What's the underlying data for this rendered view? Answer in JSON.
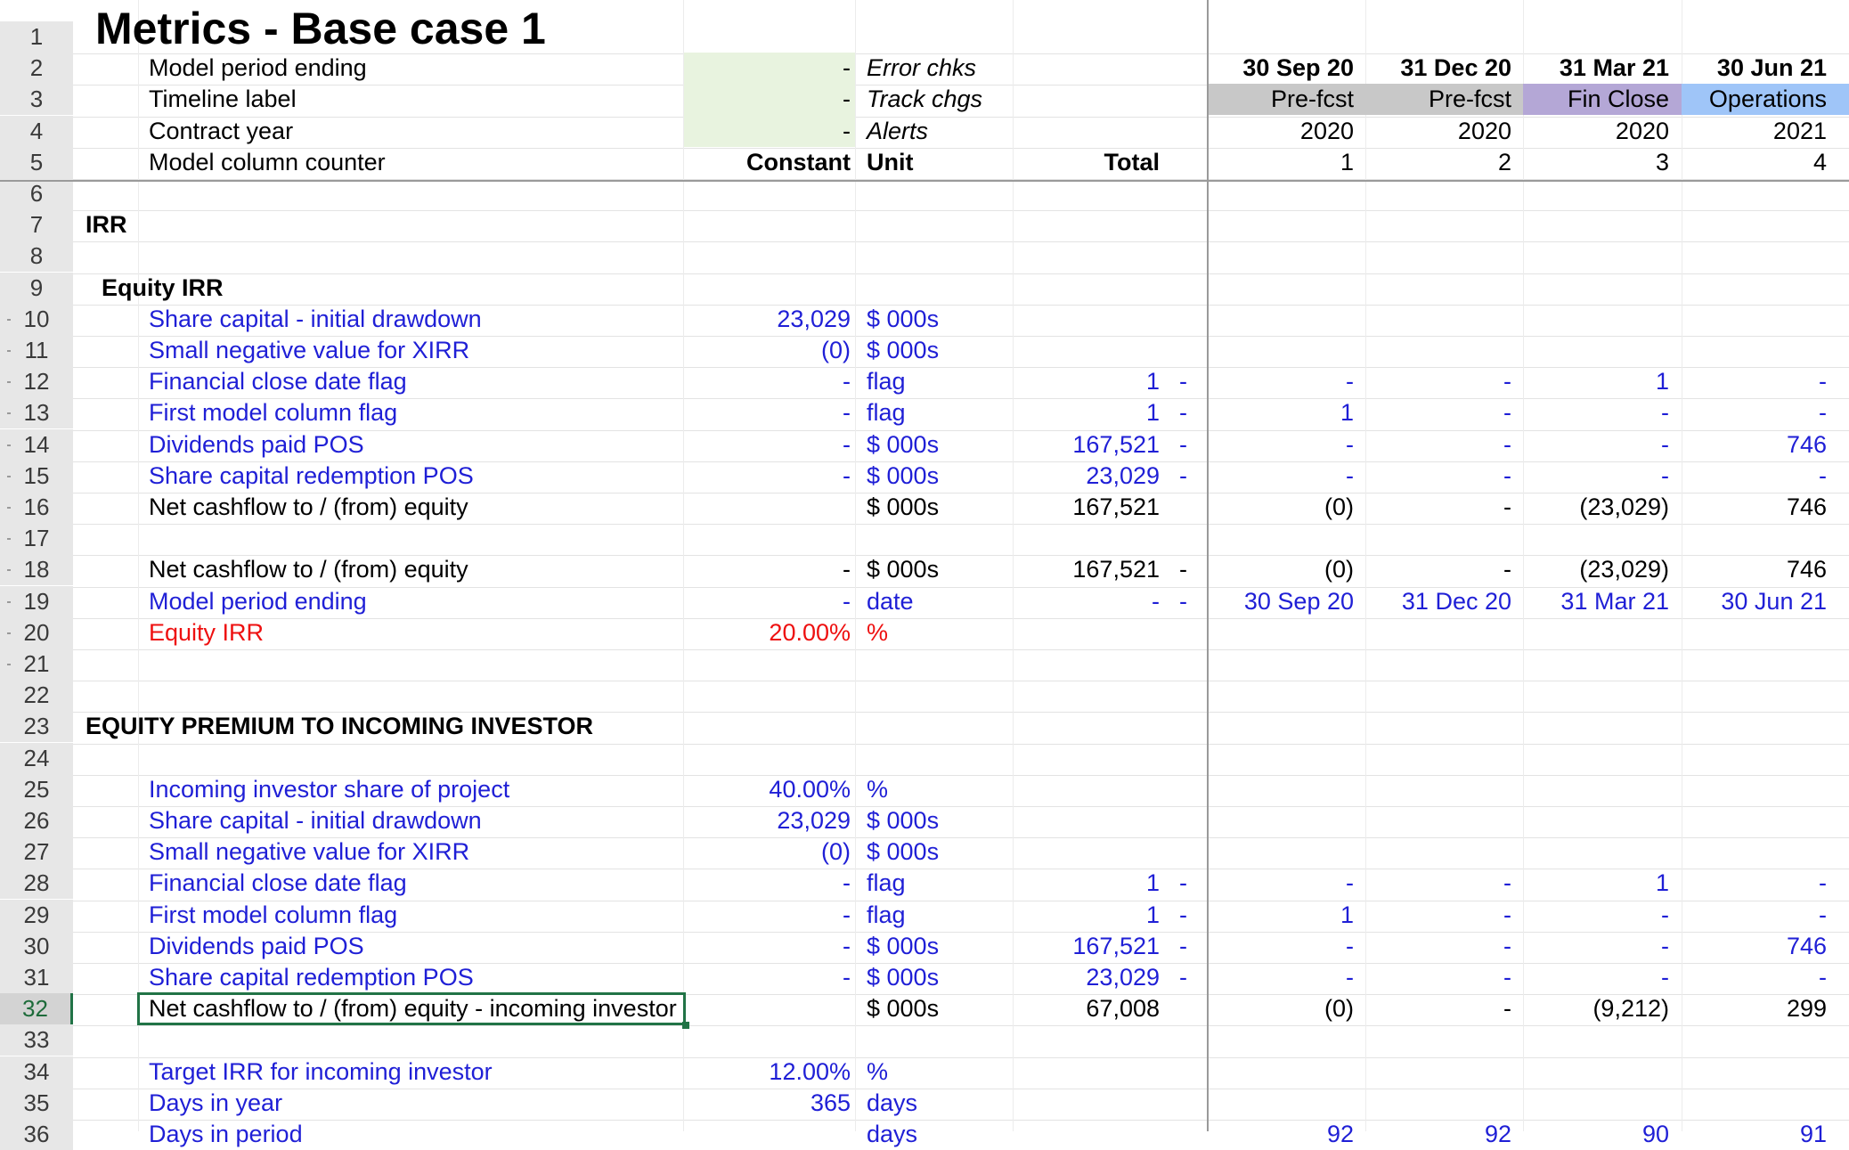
{
  "title": "Metrics - Base case 1",
  "header": {
    "labels": [
      "Model period ending",
      "Timeline label",
      "Contract year",
      "Model column counter"
    ],
    "constants": [
      "-",
      "-",
      "-"
    ],
    "checks": [
      "Error chks",
      "Track chgs",
      "Alerts"
    ],
    "constant_hdr": "Constant",
    "unit_hdr": "Unit",
    "total_hdr": "Total",
    "periods": [
      {
        "date": "30 Sep 20",
        "label": "Pre-fcst",
        "year": "2020",
        "counter": "1",
        "color": "#c8c8c8"
      },
      {
        "date": "31 Dec 20",
        "label": "Pre-fcst",
        "year": "2020",
        "counter": "2",
        "color": "#c8c8c8"
      },
      {
        "date": "31 Mar 21",
        "label": "Fin Close",
        "year": "2020",
        "counter": "3",
        "color": "#b4a7d6"
      },
      {
        "date": "30 Jun 21",
        "label": "Operations",
        "year": "2021",
        "counter": "4",
        "color": "#9fc5f8"
      }
    ],
    "constant_fill": "#e8f3df"
  },
  "row_numbers": [
    "1",
    "2",
    "3",
    "4",
    "5",
    "6",
    "7",
    "8",
    "9",
    "10",
    "11",
    "12",
    "13",
    "14",
    "15",
    "16",
    "17",
    "18",
    "19",
    "20",
    "21",
    "22",
    "23",
    "24",
    "25",
    "26",
    "27",
    "28",
    "29",
    "30",
    "31",
    "32",
    "33",
    "34",
    "35",
    "36"
  ],
  "active_row": "32",
  "sections": {
    "irr": "IRR",
    "equity_irr": "Equity IRR",
    "premium": "EQUITY PREMIUM TO INCOMING INVESTOR"
  },
  "rows": [
    {
      "n": 10,
      "label": "Share capital - initial drawdown",
      "color": "blue",
      "constant": "23,029",
      "unit": "$ 000s",
      "total": "",
      "dash": "",
      "p": [
        "",
        "",
        "",
        ""
      ]
    },
    {
      "n": 11,
      "label": "Small negative value for XIRR",
      "color": "blue",
      "constant": "(0)",
      "unit": "$ 000s",
      "total": "",
      "dash": "",
      "p": [
        "",
        "",
        "",
        ""
      ]
    },
    {
      "n": 12,
      "label": "Financial close date flag",
      "color": "blue",
      "constant": "-",
      "unit": "flag",
      "total": "1",
      "dash": "-",
      "p": [
        "-",
        "-",
        "1",
        "-"
      ]
    },
    {
      "n": 13,
      "label": "First model column flag",
      "color": "blue",
      "constant": "-",
      "unit": "flag",
      "total": "1",
      "dash": "-",
      "p": [
        "1",
        "-",
        "-",
        "-"
      ]
    },
    {
      "n": 14,
      "label": "Dividends paid POS",
      "color": "blue",
      "constant": "-",
      "unit": "$ 000s",
      "total": "167,521",
      "dash": "-",
      "p": [
        "-",
        "-",
        "-",
        "746"
      ]
    },
    {
      "n": 15,
      "label": "Share capital redemption POS",
      "color": "blue",
      "constant": "-",
      "unit": "$ 000s",
      "total": "23,029",
      "dash": "-",
      "p": [
        "-",
        "-",
        "-",
        "-"
      ]
    },
    {
      "n": 16,
      "label": "Net cashflow to / (from) equity",
      "color": "black",
      "constant": "",
      "unit": "$ 000s",
      "total": "167,521",
      "dash": "",
      "p": [
        "(0)",
        "-",
        "(23,029)",
        "746"
      ]
    },
    {
      "n": 18,
      "label": "Net cashflow to / (from) equity",
      "color": "black",
      "constant": "-",
      "unit": "$ 000s",
      "total": "167,521",
      "dash": "-",
      "p": [
        "(0)",
        "-",
        "(23,029)",
        "746"
      ]
    },
    {
      "n": 19,
      "label": "Model period ending",
      "color": "blue",
      "constant": "-",
      "unit": "date",
      "total": "-",
      "dash": "-",
      "p": [
        "30 Sep 20",
        "31 Dec 20",
        "31 Mar 21",
        "30 Jun 21"
      ]
    },
    {
      "n": 20,
      "label": "Equity IRR",
      "color": "red",
      "constant": "20.00%",
      "unit": "%",
      "total": "",
      "dash": "",
      "p": [
        "",
        "",
        "",
        ""
      ]
    },
    {
      "n": 25,
      "label": "Incoming investor share of project",
      "color": "blue",
      "constant": "40.00%",
      "unit": "%",
      "total": "",
      "dash": "",
      "p": [
        "",
        "",
        "",
        ""
      ]
    },
    {
      "n": 26,
      "label": "Share capital - initial drawdown",
      "color": "blue",
      "constant": "23,029",
      "unit": "$ 000s",
      "total": "",
      "dash": "",
      "p": [
        "",
        "",
        "",
        ""
      ]
    },
    {
      "n": 27,
      "label": "Small negative value for XIRR",
      "color": "blue",
      "constant": "(0)",
      "unit": "$ 000s",
      "total": "",
      "dash": "",
      "p": [
        "",
        "",
        "",
        ""
      ]
    },
    {
      "n": 28,
      "label": "Financial close date flag",
      "color": "blue",
      "constant": "-",
      "unit": "flag",
      "total": "1",
      "dash": "-",
      "p": [
        "-",
        "-",
        "1",
        "-"
      ]
    },
    {
      "n": 29,
      "label": "First model column flag",
      "color": "blue",
      "constant": "-",
      "unit": "flag",
      "total": "1",
      "dash": "-",
      "p": [
        "1",
        "-",
        "-",
        "-"
      ]
    },
    {
      "n": 30,
      "label": "Dividends paid POS",
      "color": "blue",
      "constant": "-",
      "unit": "$ 000s",
      "total": "167,521",
      "dash": "-",
      "p": [
        "-",
        "-",
        "-",
        "746"
      ]
    },
    {
      "n": 31,
      "label": "Share capital redemption POS",
      "color": "blue",
      "constant": "-",
      "unit": "$ 000s",
      "total": "23,029",
      "dash": "-",
      "p": [
        "-",
        "-",
        "-",
        "-"
      ]
    },
    {
      "n": 32,
      "label": "Net cashflow to / (from) equity - incoming investor",
      "color": "black",
      "constant": "",
      "unit": "$ 000s",
      "total": "67,008",
      "dash": "",
      "p": [
        "(0)",
        "-",
        "(9,212)",
        "299"
      ]
    },
    {
      "n": 34,
      "label": "Target IRR for incoming investor",
      "color": "blue",
      "constant": "12.00%",
      "unit": "%",
      "total": "",
      "dash": "",
      "p": [
        "",
        "",
        "",
        ""
      ]
    },
    {
      "n": 35,
      "label": "Days in year",
      "color": "blue",
      "constant": "365",
      "unit": "days",
      "total": "",
      "dash": "",
      "p": [
        "",
        "",
        "",
        ""
      ]
    },
    {
      "n": 36,
      "label": "Days in period",
      "color": "blue",
      "constant": "",
      "unit": "days",
      "total": "",
      "dash": "",
      "p": [
        "92",
        "92",
        "90",
        "91"
      ]
    }
  ]
}
